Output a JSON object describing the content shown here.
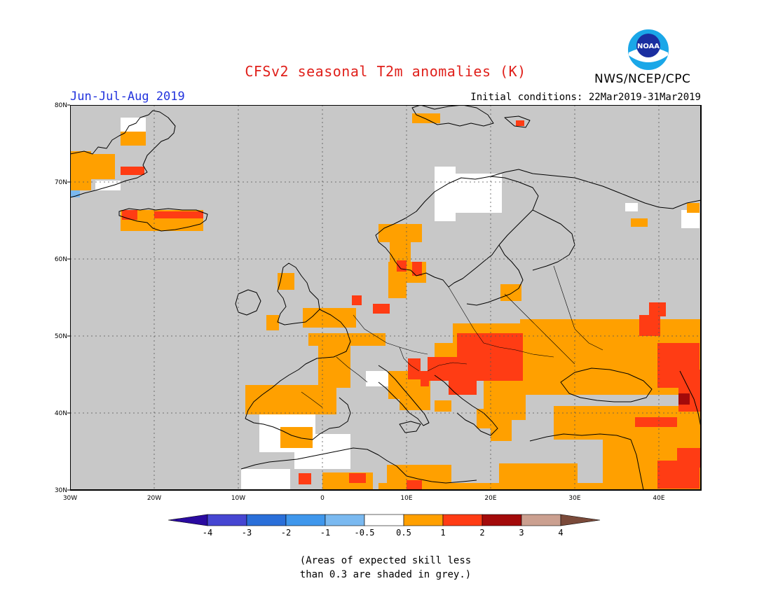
{
  "header": {
    "title": "CFSv2 seasonal T2m anomalies (K)",
    "season": "Jun-Jul-Aug 2019",
    "initial_conditions": "Initial conditions: 22Mar2019-31Mar2019",
    "agency": "NWS/NCEP/CPC",
    "logo_text": "NOAA"
  },
  "map": {
    "lon_range": [
      -30,
      45
    ],
    "lat_range": [
      30,
      80
    ],
    "lon_ticks": [
      "30W",
      "20W",
      "10W",
      "0",
      "10E",
      "20E",
      "30E",
      "40E"
    ],
    "lat_ticks": [
      "30N",
      "40N",
      "50N",
      "60N",
      "70N",
      "80N"
    ],
    "gridlines": "dotted",
    "background_color": "#c8c8c8"
  },
  "legend": {
    "colors": [
      "#2a0aa0",
      "#4646d2",
      "#2a6fd9",
      "#3f97ec",
      "#7ab9f0",
      "#ffffff",
      "#ffa000",
      "#ff3c14",
      "#a30a0a",
      "#cba090",
      "#7a4a3a"
    ],
    "labels": [
      "-4",
      "-3",
      "-2",
      "-1",
      "-0.5",
      "0.5",
      "1",
      "2",
      "3",
      "4"
    ]
  },
  "note": {
    "line1": "(Areas of expected skill less",
    "line2": "than 0.3 are shaded in grey.)"
  }
}
